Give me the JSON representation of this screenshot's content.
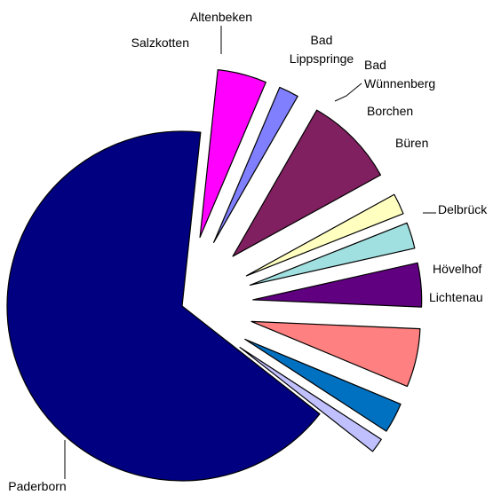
{
  "chart_data": {
    "type": "pie",
    "exploded": true,
    "start_angle_deg": 67,
    "slices": [
      {
        "label": [
          "Altenbeken"
        ],
        "value": 1.9,
        "color": "#8080ff",
        "labelAnchor": "middle"
      },
      {
        "label": [
          "Bad",
          "Lippspringe"
        ],
        "value": 8.7,
        "color": "#802060",
        "labelAnchor": "middle"
      },
      {
        "label": [
          "Bad",
          "Wünnenberg"
        ],
        "value": 2.0,
        "color": "#ffffc0",
        "labelAnchor": "start"
      },
      {
        "label": [
          "Borchen"
        ],
        "value": 2.5,
        "color": "#a0e0e0",
        "labelAnchor": "start"
      },
      {
        "label": [
          "Büren"
        ],
        "value": 4.2,
        "color": "#600080",
        "labelAnchor": "start"
      },
      {
        "label": [
          "Delbrück"
        ],
        "value": 5.6,
        "color": "#ff8080",
        "labelAnchor": "start"
      },
      {
        "label": [
          "Hövelhof"
        ],
        "value": 2.9,
        "color": "#0070c0",
        "labelAnchor": "start"
      },
      {
        "label": [
          "Lichtenau"
        ],
        "value": 1.4,
        "color": "#c0c0ff",
        "labelAnchor": "start"
      },
      {
        "label": [
          "Paderborn"
        ],
        "value": 66.1,
        "color": "#000080",
        "labelAnchor": "middle"
      },
      {
        "label": [
          "Salzkotten"
        ],
        "value": 4.7,
        "color": "#ff00ff",
        "labelAnchor": "end"
      }
    ]
  }
}
